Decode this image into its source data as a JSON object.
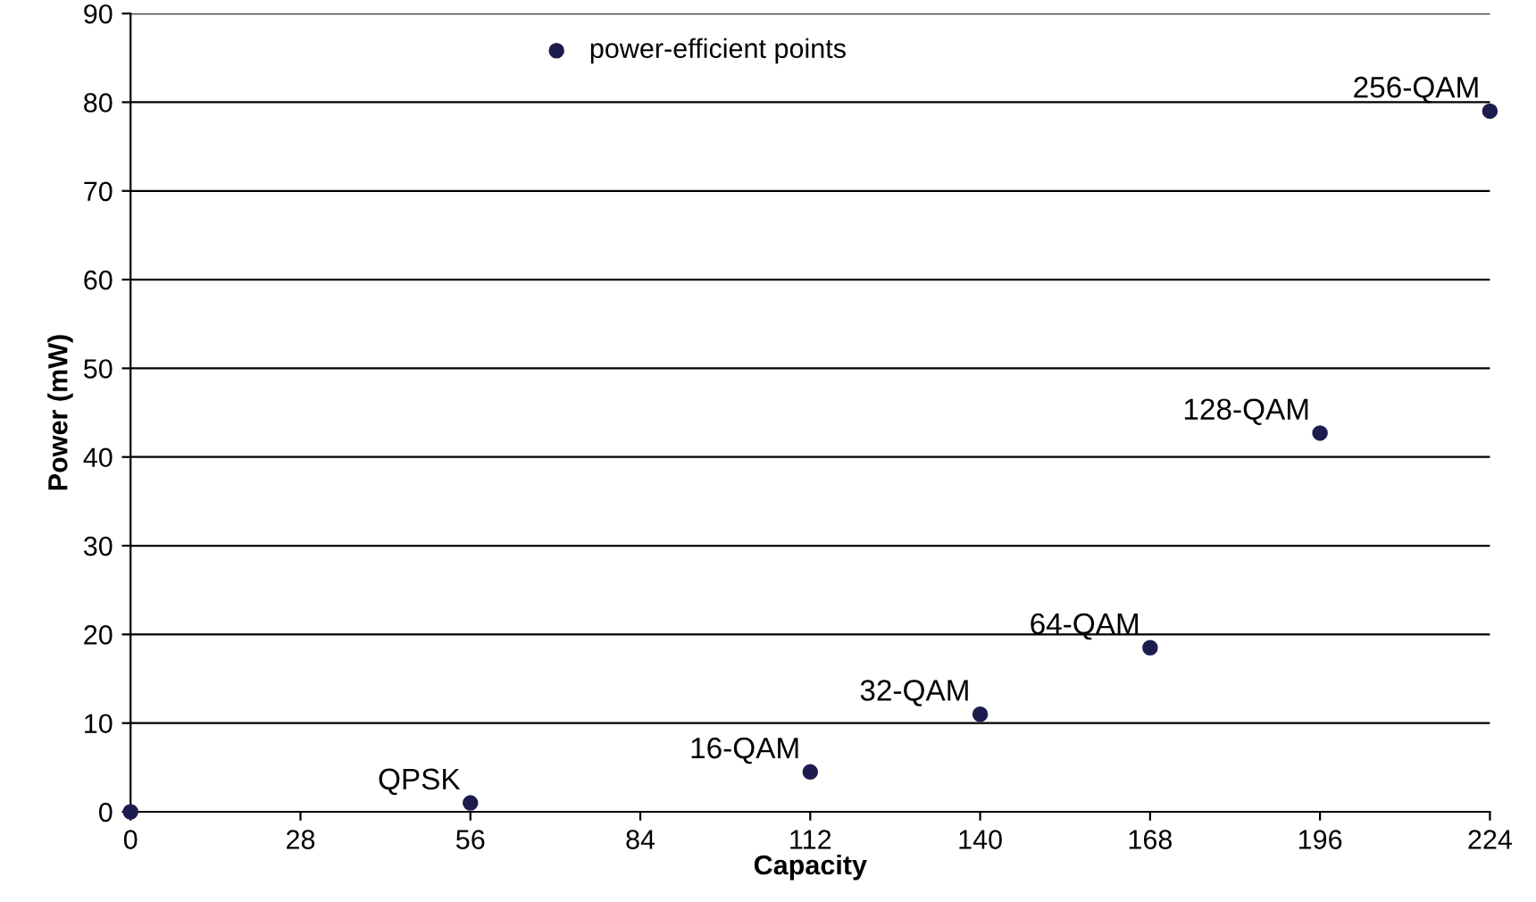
{
  "chart_data": {
    "type": "scatter",
    "xlabel": "Capacity",
    "ylabel": "Power (mW)",
    "x": [
      0,
      56,
      112,
      140,
      168,
      196,
      224
    ],
    "series": [
      {
        "name": "power-efficient points",
        "color": "#1c1c4e",
        "values": [
          0,
          1,
          4.5,
          11,
          18.5,
          42.7,
          79
        ]
      }
    ],
    "xlim": [
      0,
      224
    ],
    "ylim": [
      0,
      90
    ],
    "xticks": [
      0,
      28,
      56,
      84,
      112,
      140,
      168,
      196,
      224
    ],
    "yticks": [
      0,
      10,
      20,
      30,
      40,
      50,
      60,
      70,
      80,
      90
    ],
    "grid": "y",
    "legend": "top",
    "marker": "circle",
    "annotations": [
      {
        "text": "QPSK",
        "x": 56,
        "y": 1
      },
      {
        "text": "16-QAM",
        "x": 112,
        "y": 4.5
      },
      {
        "text": "32-QAM",
        "x": 140,
        "y": 11
      },
      {
        "text": "64-QAM",
        "x": 168,
        "y": 18.5
      },
      {
        "text": "128-QAM",
        "x": 196,
        "y": 42.7
      },
      {
        "text": "256-QAM",
        "x": 224,
        "y": 79
      }
    ]
  }
}
